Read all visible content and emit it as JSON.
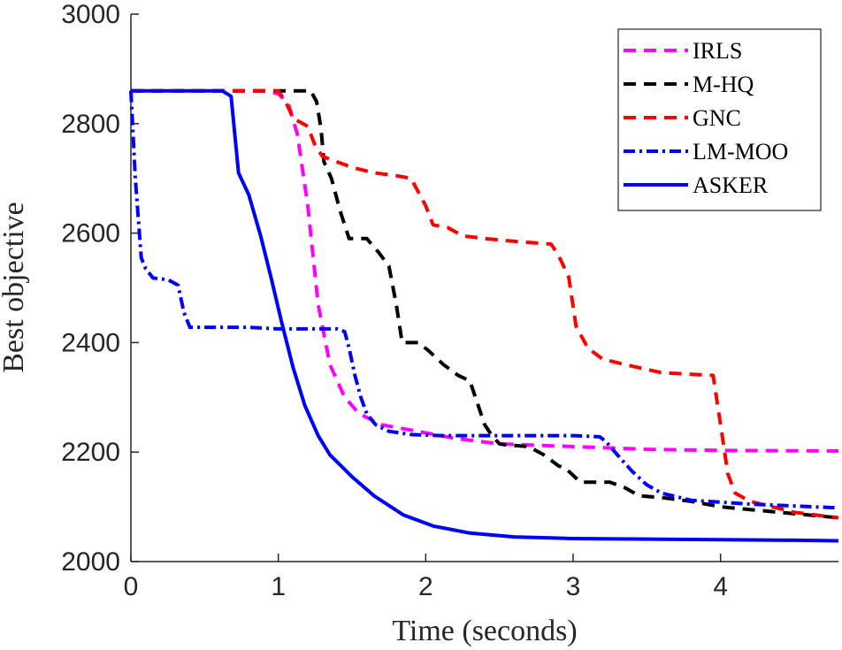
{
  "chart_data": {
    "type": "line",
    "title": "",
    "xlabel": "Time (seconds)",
    "ylabel": "Best objective",
    "xlim": [
      0,
      4.8
    ],
    "ylim": [
      2000,
      3000
    ],
    "xticks": [
      0,
      1,
      2,
      3,
      4
    ],
    "yticks": [
      2000,
      2200,
      2400,
      2600,
      2800,
      3000
    ],
    "grid": false,
    "legend_position": "top-right",
    "series": [
      {
        "name": "IRLS",
        "color": "#ff00ff",
        "style": "dashed",
        "x": [
          0,
          0.9,
          1.0,
          1.07,
          1.13,
          1.2,
          1.27,
          1.35,
          1.45,
          1.55,
          1.7,
          1.9,
          2.2,
          2.5,
          3.0,
          3.5,
          4.0,
          4.8
        ],
        "y": [
          2860,
          2860,
          2855,
          2835,
          2780,
          2650,
          2470,
          2360,
          2300,
          2270,
          2250,
          2240,
          2225,
          2215,
          2210,
          2205,
          2203,
          2202
        ]
      },
      {
        "name": "M-HQ",
        "color": "#000000",
        "style": "dashed",
        "x": [
          0,
          1.22,
          1.26,
          1.29,
          1.31,
          1.36,
          1.42,
          1.48,
          1.6,
          1.68,
          1.75,
          1.8,
          1.84,
          1.95,
          2.02,
          2.12,
          2.22,
          2.3,
          2.4,
          2.45,
          2.5,
          2.55,
          2.7,
          2.8,
          2.9,
          2.95,
          3.05,
          3.25,
          3.35,
          3.45,
          3.6,
          3.8,
          4.0,
          4.2,
          4.4,
          4.6,
          4.8
        ],
        "y": [
          2860,
          2860,
          2840,
          2790,
          2730,
          2700,
          2640,
          2590,
          2590,
          2565,
          2540,
          2470,
          2400,
          2400,
          2385,
          2360,
          2340,
          2330,
          2250,
          2230,
          2215,
          2213,
          2210,
          2195,
          2175,
          2170,
          2145,
          2145,
          2135,
          2120,
          2117,
          2110,
          2100,
          2095,
          2090,
          2085,
          2080
        ]
      },
      {
        "name": "GNC",
        "color": "#ff0000",
        "style": "dashed",
        "x": [
          0,
          1.0,
          1.05,
          1.1,
          1.2,
          1.25,
          1.3,
          1.4,
          1.5,
          1.65,
          1.8,
          1.9,
          2.0,
          2.05,
          2.15,
          2.25,
          2.4,
          2.6,
          2.85,
          2.9,
          2.97,
          3.02,
          3.1,
          3.2,
          3.35,
          3.6,
          3.95,
          4.0,
          4.05,
          4.1,
          4.2,
          4.5,
          4.8
        ],
        "y": [
          2860,
          2860,
          2840,
          2810,
          2795,
          2760,
          2740,
          2730,
          2720,
          2710,
          2705,
          2700,
          2650,
          2615,
          2610,
          2595,
          2590,
          2585,
          2580,
          2560,
          2520,
          2430,
          2390,
          2370,
          2360,
          2345,
          2340,
          2250,
          2160,
          2125,
          2110,
          2090,
          2080
        ]
      },
      {
        "name": "LM-MOO",
        "color": "#0000ff",
        "style": "dashdot",
        "x": [
          0,
          0.03,
          0.07,
          0.1,
          0.15,
          0.25,
          0.32,
          0.36,
          0.4,
          0.8,
          1.0,
          1.2,
          1.4,
          1.45,
          1.48,
          1.52,
          1.56,
          1.6,
          1.66,
          1.75,
          1.9,
          2.1,
          2.5,
          3.0,
          3.18,
          3.22,
          3.3,
          3.4,
          3.5,
          3.6,
          3.8,
          4.2,
          4.8
        ],
        "y": [
          2860,
          2700,
          2555,
          2535,
          2518,
          2515,
          2505,
          2455,
          2428,
          2428,
          2425,
          2425,
          2425,
          2420,
          2390,
          2340,
          2300,
          2270,
          2250,
          2238,
          2232,
          2230,
          2230,
          2230,
          2228,
          2220,
          2195,
          2165,
          2140,
          2125,
          2112,
          2105,
          2098
        ]
      },
      {
        "name": "ASKER",
        "color": "#0000ff",
        "style": "solid",
        "x": [
          0,
          0.62,
          0.68,
          0.73,
          0.8,
          0.88,
          0.95,
          1.02,
          1.1,
          1.18,
          1.27,
          1.35,
          1.5,
          1.65,
          1.85,
          2.05,
          2.3,
          2.6,
          3.0,
          3.5,
          4.0,
          4.5,
          4.8
        ],
        "y": [
          2860,
          2860,
          2850,
          2710,
          2670,
          2595,
          2520,
          2440,
          2355,
          2285,
          2230,
          2195,
          2155,
          2120,
          2085,
          2065,
          2052,
          2045,
          2042,
          2041,
          2040,
          2039,
          2038
        ]
      }
    ]
  }
}
